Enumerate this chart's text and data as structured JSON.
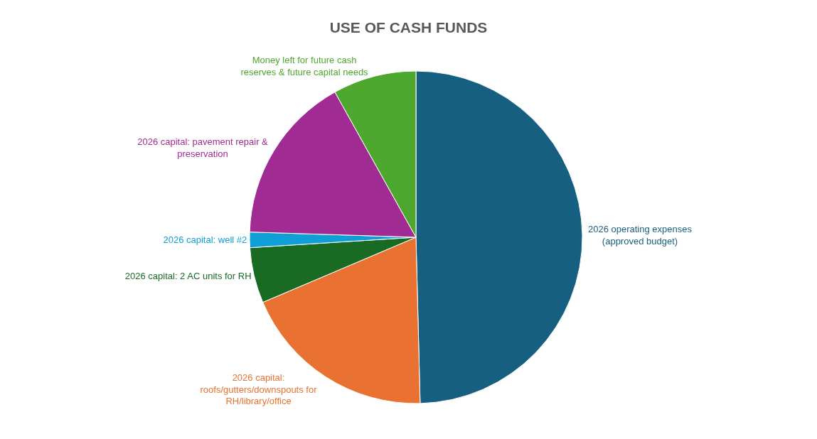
{
  "chart_data": {
    "type": "pie",
    "title": "USE OF CASH FUNDS",
    "categories": [
      "2026 operating expenses (approved budget)",
      "2026 capital: roofs/gutters/downspouts for RH/library/office",
      "2026 capital: 2 AC units for RH",
      "2026 capital: well #2",
      "2026 capital: pavement repair & preservation",
      "Money left for future cash reserves & future capital needs"
    ],
    "values": [
      49.6,
      19.0,
      5.4,
      1.5,
      16.4,
      8.1
    ],
    "colors": [
      "#175f80",
      "#e97132",
      "#196b24",
      "#0f9ed5",
      "#a02b93",
      "#4ea72e"
    ],
    "legend": false
  }
}
